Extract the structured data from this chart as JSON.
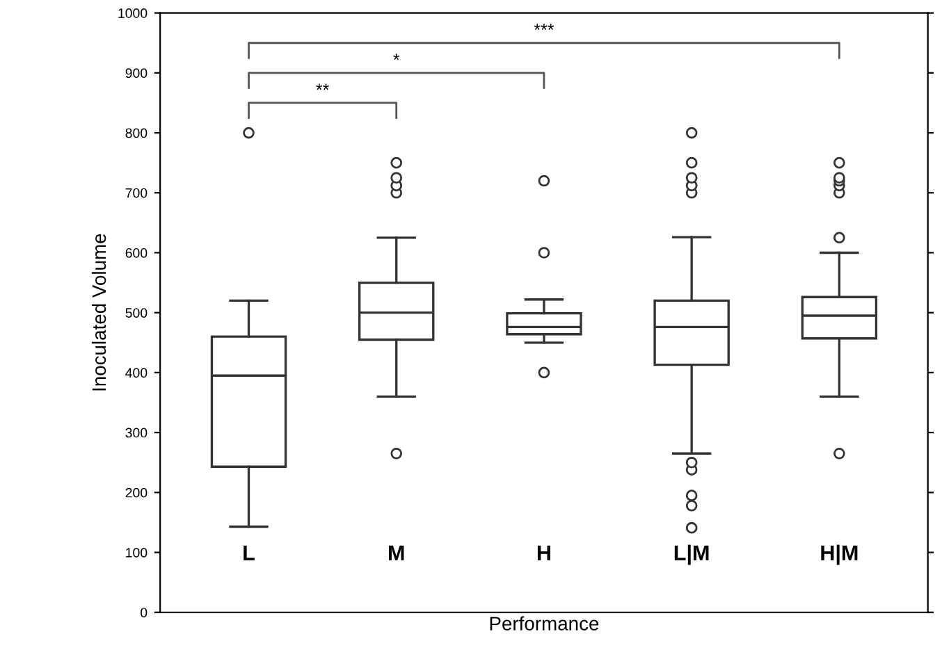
{
  "chart_data": {
    "type": "box",
    "xlabel": "Performance",
    "ylabel": "Inoculated Volume",
    "categories": [
      "L",
      "M",
      "H",
      "L|M",
      "H|M"
    ],
    "boxes": [
      {
        "low": 143,
        "q1": 243,
        "median": 395,
        "q3": 460,
        "high": 520,
        "outliers": [
          800
        ]
      },
      {
        "low": 360,
        "q1": 455,
        "median": 500,
        "q3": 550,
        "high": 625,
        "outliers": [
          265,
          700,
          712,
          725,
          750
        ]
      },
      {
        "low": 450,
        "q1": 464,
        "median": 476,
        "q3": 499,
        "high": 522,
        "outliers": [
          400,
          600,
          720
        ]
      },
      {
        "low": 265,
        "q1": 413,
        "median": 476,
        "q3": 520,
        "high": 626,
        "outliers": [
          141,
          178,
          195,
          238,
          250,
          700,
          712,
          725,
          750,
          800
        ]
      },
      {
        "low": 360,
        "q1": 457,
        "median": 495,
        "q3": 526,
        "high": 600,
        "outliers": [
          265,
          625,
          700,
          712,
          720,
          725,
          750
        ]
      }
    ],
    "ylim": [
      0,
      1000
    ],
    "yticks": [
      0,
      100,
      200,
      300,
      400,
      500,
      600,
      700,
      800,
      900,
      1000
    ],
    "grid": false,
    "annotations": [
      "**",
      "*",
      "***"
    ]
  }
}
